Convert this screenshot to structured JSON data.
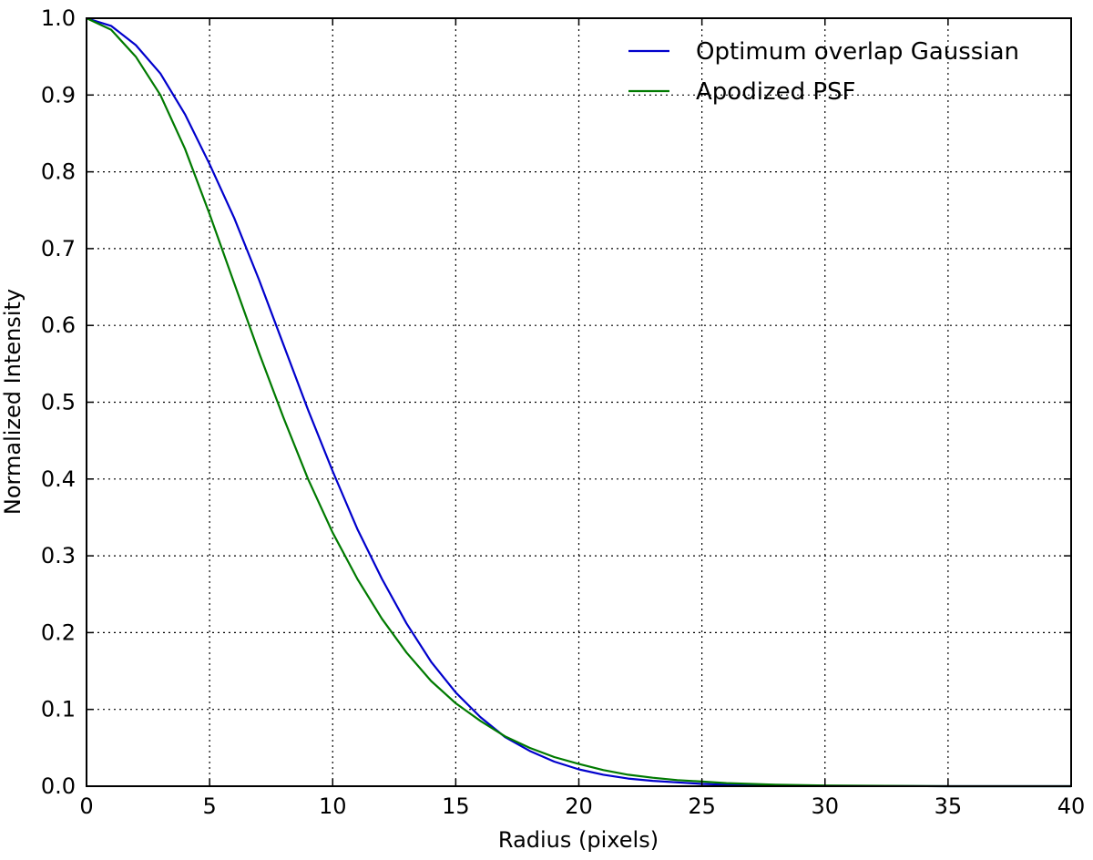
{
  "chart_data": {
    "type": "line",
    "title": "",
    "xlabel": "Radius (pixels)",
    "ylabel": "Normalized Intensity",
    "xlim": [
      0,
      40
    ],
    "ylim": [
      0.0,
      1.0
    ],
    "x_ticks": [
      "0",
      "5",
      "10",
      "15",
      "20",
      "25",
      "30",
      "35",
      "40"
    ],
    "y_ticks": [
      "0.0",
      "0.1",
      "0.2",
      "0.3",
      "0.4",
      "0.5",
      "0.6",
      "0.7",
      "0.8",
      "0.9",
      "1.0"
    ],
    "grid": true,
    "legend_position": "top-right",
    "series": [
      {
        "name": "Optimum overlap Gaussian",
        "color": "#0000cc",
        "x": [
          0,
          1,
          2,
          3,
          4,
          5,
          6,
          7,
          8,
          9,
          10,
          11,
          12,
          13,
          14,
          15,
          16,
          17,
          18,
          19,
          20,
          21,
          22,
          23,
          24,
          25,
          26,
          27,
          28,
          30,
          35,
          40
        ],
        "y": [
          1.0,
          0.99,
          0.965,
          0.928,
          0.875,
          0.81,
          0.74,
          0.66,
          0.575,
          0.49,
          0.41,
          0.335,
          0.27,
          0.212,
          0.162,
          0.122,
          0.09,
          0.064,
          0.046,
          0.032,
          0.022,
          0.015,
          0.01,
          0.007,
          0.005,
          0.003,
          0.002,
          0.0015,
          0.001,
          0.0005,
          0.0,
          0.0
        ]
      },
      {
        "name": "Apodized PSF",
        "color": "#007a00",
        "x": [
          0,
          1,
          2,
          3,
          4,
          5,
          6,
          7,
          8,
          9,
          10,
          11,
          12,
          13,
          14,
          15,
          16,
          17,
          18,
          19,
          20,
          21,
          22,
          23,
          24,
          25,
          26,
          27,
          28,
          30,
          35,
          40
        ],
        "y": [
          1.0,
          0.985,
          0.95,
          0.9,
          0.83,
          0.745,
          0.655,
          0.565,
          0.48,
          0.4,
          0.33,
          0.27,
          0.218,
          0.174,
          0.137,
          0.108,
          0.085,
          0.065,
          0.05,
          0.038,
          0.029,
          0.021,
          0.015,
          0.011,
          0.008,
          0.006,
          0.004,
          0.003,
          0.002,
          0.001,
          0.0,
          0.0
        ]
      }
    ]
  }
}
